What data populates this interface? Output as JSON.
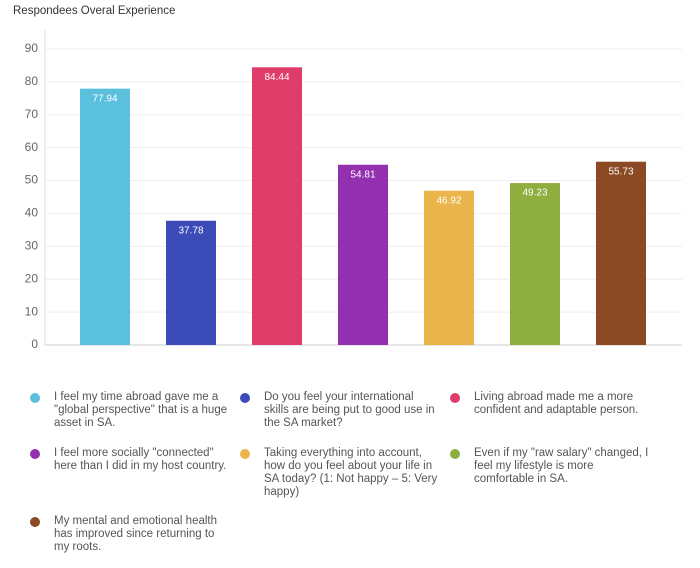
{
  "chart_data": {
    "type": "bar",
    "title": "Respondees Overal Experience",
    "categories": [
      "I feel my time abroad gave me a \"global perspective\" that is a huge asset in SA.",
      "Do you feel your international skills are being put to good use in the SA market?",
      "Living abroad made me a more confident and adaptable person.",
      "I feel more socially \"connected\" here than I did in my host country.",
      "Taking everything into account, how do you feel about your life in SA today? (1: Not happy – 5: Very happy)",
      "Even if my \"raw salary\" changed, I feel my lifestyle is more comfortable in SA.",
      "My mental and emotional health has improved since returning to my roots."
    ],
    "values": [
      77.94,
      37.78,
      84.44,
      54.81,
      46.92,
      49.23,
      55.73
    ],
    "colors": [
      "#5bc0de",
      "#3b4cb8",
      "#e03c6a",
      "#9230b0",
      "#eab54a",
      "#8fae40",
      "#8b4a24"
    ],
    "ylim": [
      0,
      90
    ],
    "yticks": [
      0,
      10,
      20,
      30,
      40,
      50,
      60,
      70,
      80,
      90
    ],
    "grid": true
  }
}
